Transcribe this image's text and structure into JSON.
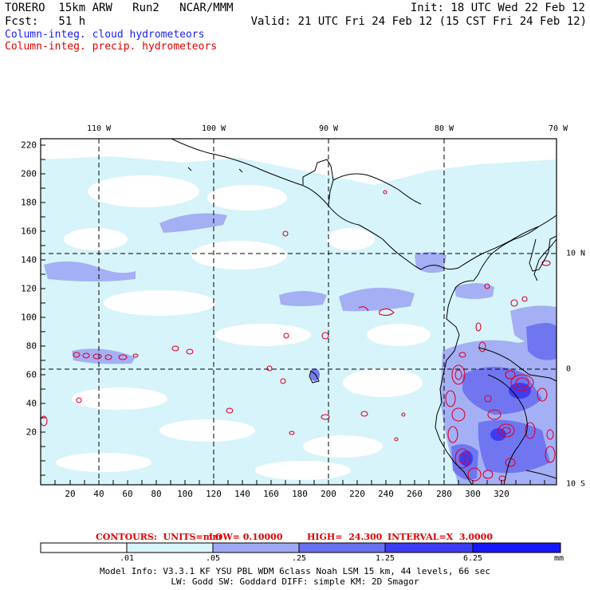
{
  "header": {
    "model": "TORERO  15km ARW   Run2   NCAR/MMM",
    "init": "Init: 18 UTC Wed 22 Feb 12",
    "fcst": "Fcst:   51 h",
    "valid": "Valid: 21 UTC Fri 24 Feb 12 (15 CST Fri 24 Feb 12)",
    "legend_cloud": "Column-integ. cloud hydrometeors",
    "legend_precip": "Column-integ. precip. hydrometeors"
  },
  "colors": {
    "cloud_text": "#1a1aff",
    "precip_text": "#e00000",
    "precip_contour": "#e0002a",
    "shade1": "#d6f4fa",
    "shade2": "#9fa8f4",
    "shade3": "#6b70f0",
    "shade4": "#2a2aff"
  },
  "map": {
    "lon_labels": [
      "110 W",
      "100 W",
      "90 W",
      "80 W",
      "70 W"
    ],
    "lat_labels": [
      "10 N",
      "0",
      "10 S"
    ],
    "y_ticks": [
      "220",
      "200",
      "180",
      "160",
      "140",
      "120",
      "100",
      "80",
      "60",
      "40",
      "20"
    ],
    "x_ticks": [
      "20",
      "40",
      "60",
      "80",
      "100",
      "120",
      "140",
      "160",
      "180",
      "200",
      "220",
      "240",
      "260",
      "280",
      "300",
      "320"
    ]
  },
  "contours": {
    "units": "CONTOURS:  UNITS=mm",
    "low": "LOW= 0.10000",
    "high": "HIGH=  24.300",
    "interval": "INTERVAL=X  3.0000"
  },
  "colorbar": {
    "labels": [
      ".01",
      ".05",
      ".25",
      "1.25",
      "6.25"
    ],
    "unit": "mm",
    "fills": [
      "#ffffff",
      "#d6f4fa",
      "#9fa8f4",
      "#6b70f0",
      "#3c3cf2",
      "#1717ff"
    ]
  },
  "footer": {
    "line1": "Model Info: V3.3.1   KF     YSU PBL  WDM 6class  Noah LSM  15 km,    44 levels,    66 sec",
    "line2": "LW: Godd SW: Goddard DIFF: simple KM: 2D Smagor"
  }
}
